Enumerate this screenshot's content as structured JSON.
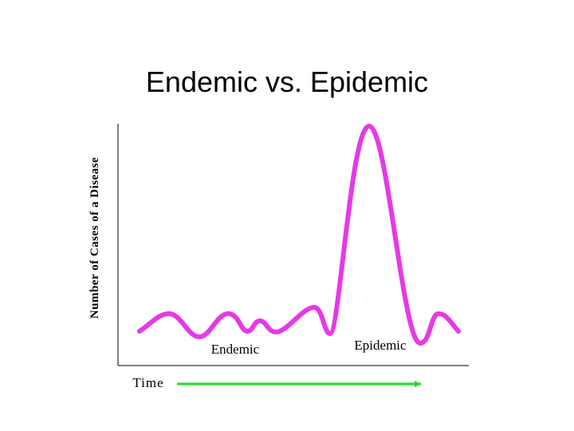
{
  "title": "Endemic vs. Epidemic",
  "y_axis_label": "Number of Cases of a Disease",
  "labels": {
    "endemic": "Endemic",
    "epidemic": "Epidemic"
  },
  "x_axis_label": "Time"
}
